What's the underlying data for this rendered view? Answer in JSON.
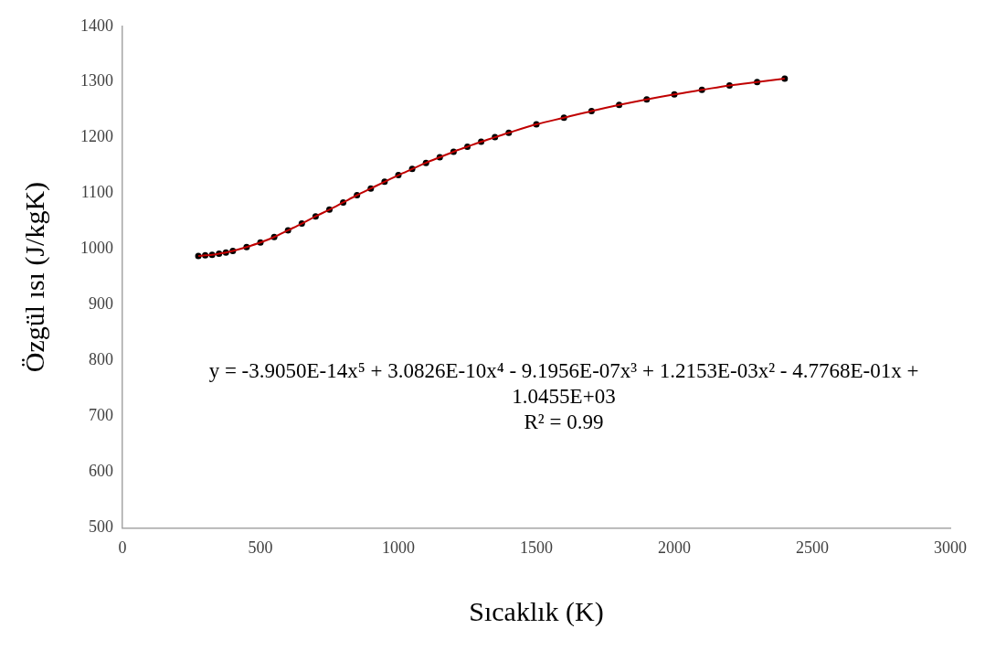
{
  "chart_data": {
    "type": "scatter",
    "xlabel": "Sıcaklık (K)",
    "ylabel": "Özgül ısı (J/kgK)",
    "x": [
      275,
      300,
      325,
      350,
      375,
      400,
      450,
      500,
      550,
      600,
      650,
      700,
      750,
      800,
      850,
      900,
      950,
      1000,
      1050,
      1100,
      1150,
      1200,
      1250,
      1300,
      1350,
      1400,
      1500,
      1600,
      1700,
      1800,
      1900,
      2000,
      2100,
      2200,
      2300,
      2400
    ],
    "series": [
      {
        "type": "line",
        "color": "#c00000",
        "marker": "none",
        "line_style": "solid",
        "values": [
          988,
          989,
          990,
          992,
          994,
          997,
          1004,
          1012,
          1022,
          1034,
          1046,
          1059,
          1071,
          1084,
          1097,
          1109,
          1121,
          1133,
          1144,
          1155,
          1165,
          1175,
          1184,
          1193,
          1201,
          1209,
          1224,
          1236,
          1248,
          1259,
          1269,
          1278,
          1286,
          1294,
          1300,
          1306
        ]
      },
      {
        "type": "scatter",
        "color": "#000000",
        "marker": "circle",
        "values": [
          988,
          989,
          990,
          992,
          994,
          997,
          1004,
          1012,
          1022,
          1034,
          1046,
          1059,
          1071,
          1084,
          1097,
          1109,
          1121,
          1133,
          1144,
          1155,
          1165,
          1175,
          1184,
          1193,
          1201,
          1209,
          1224,
          1236,
          1248,
          1259,
          1269,
          1278,
          1286,
          1294,
          1300,
          1306
        ]
      }
    ],
    "xlim": [
      0,
      3000
    ],
    "xticks": [
      0,
      500,
      1000,
      1500,
      2000,
      2500,
      3000
    ],
    "ylim": [
      500,
      1400
    ],
    "yticks": [
      500,
      600,
      700,
      800,
      900,
      1000,
      1100,
      1200,
      1300,
      1400
    ],
    "grid": false,
    "legend": false,
    "annotations": [
      "y = -3.9050E-14x⁵ + 3.0826E-10x⁴ - 9.1956E-07x³ + 1.2153E-03x² - 4.7768E-01x + 1.0455E+03",
      "R² = 0.99"
    ]
  }
}
